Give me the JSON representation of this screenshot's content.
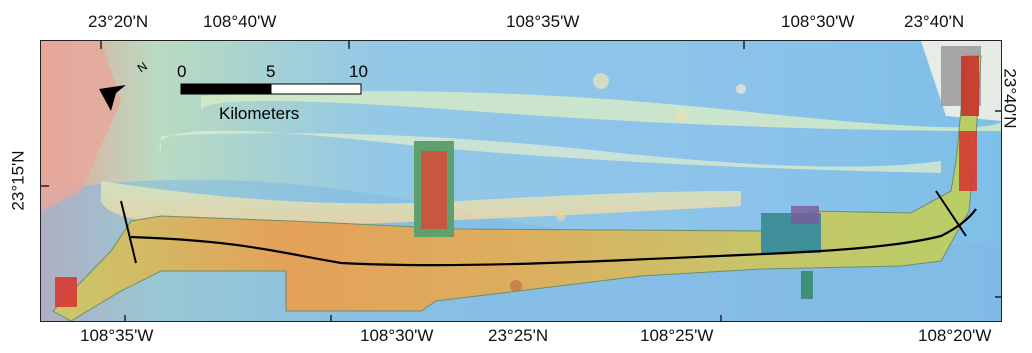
{
  "top_labels": [
    "23°20'N",
    "108°40'W",
    "108°35'W",
    "108°30'W",
    "23°40'N"
  ],
  "bottom_labels": [
    "108°35'W",
    "108°30'W",
    "23°25'N",
    "108°25'W",
    "108°20'W"
  ],
  "left_label": "23°15'N",
  "right_label": "23°40'N",
  "scale": {
    "ticks": [
      "0",
      "5",
      "10"
    ],
    "unit": "Kilometers"
  },
  "north_arrow": {
    "label": "N",
    "icon": "north-arrow-icon"
  },
  "colors": {
    "frame": "#222222",
    "track": "#000000",
    "deep": "#6fb6e6",
    "mid": "#a9d6b8",
    "shallow": "#e8a070",
    "survey_red": "#e0302a"
  }
}
